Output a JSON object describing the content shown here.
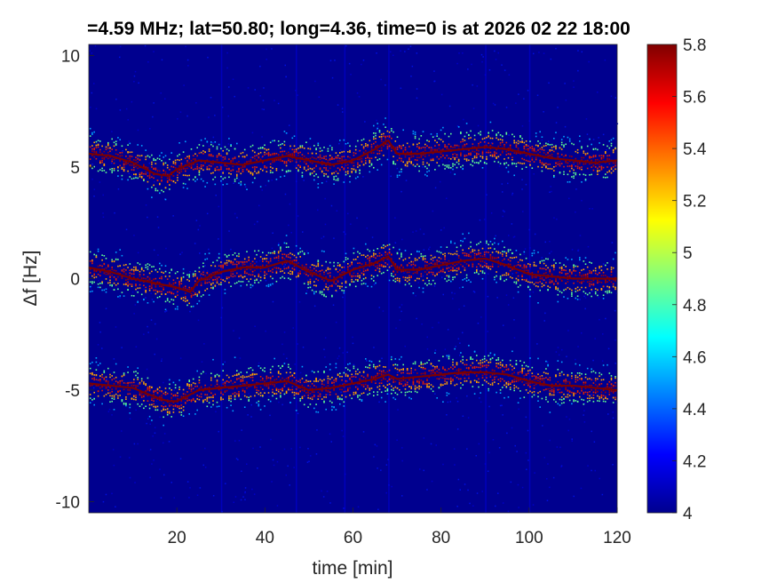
{
  "chart_data": {
    "type": "heatmap",
    "title": "=4.59 MHz;  lat=50.80; long=4.36, time=0 is at 2026 02 22 18:00",
    "xlabel": "time [min]",
    "ylabel": "Δf [Hz]",
    "xlim": [
      0,
      120
    ],
    "ylim": [
      -10.5,
      10.5
    ],
    "x_ticks": [
      20,
      40,
      60,
      80,
      100,
      120
    ],
    "x_tick_labels": [
      "20",
      "40",
      "60",
      "80",
      "100",
      "120"
    ],
    "y_ticks": [
      10,
      5,
      0,
      -5,
      -10
    ],
    "y_tick_labels": [
      "10",
      "5",
      "0",
      "-5",
      "-10"
    ],
    "colorbar": {
      "min": 4,
      "max": 5.8,
      "ticks": [
        5.8,
        5.6,
        5.4,
        5.2,
        5,
        4.8,
        4.6,
        4.4,
        4.2,
        4
      ],
      "tick_labels": [
        "5.8",
        "5.6",
        "5.4",
        "5.2",
        "5",
        "4.8",
        "4.6",
        "4.4",
        "4.2",
        "4"
      ],
      "colormap": "jet"
    },
    "background_value": 4.05,
    "series": [
      {
        "x": [
          0,
          5,
          10,
          15,
          18,
          20,
          25,
          30,
          35,
          40,
          45,
          50,
          55,
          60,
          65,
          68,
          70,
          75,
          80,
          85,
          90,
          95,
          100,
          105,
          110,
          115,
          120
        ],
        "y": [
          5.6,
          5.5,
          5.2,
          4.7,
          4.6,
          4.9,
          5.3,
          5.2,
          5.1,
          5.3,
          5.5,
          5.3,
          5.1,
          5.3,
          5.8,
          6.2,
          5.6,
          5.6,
          5.7,
          5.8,
          5.9,
          5.8,
          5.6,
          5.4,
          5.3,
          5.2,
          5.3
        ]
      },
      {
        "x": [
          0,
          5,
          10,
          15,
          20,
          23,
          25,
          30,
          35,
          40,
          45,
          50,
          55,
          60,
          65,
          68,
          70,
          75,
          80,
          85,
          90,
          95,
          100,
          105,
          110,
          115,
          120
        ],
        "y": [
          0.5,
          0.3,
          0.0,
          -0.2,
          -0.4,
          -0.6,
          -0.1,
          0.3,
          0.5,
          0.5,
          0.8,
          0.3,
          -0.1,
          0.4,
          0.7,
          1.0,
          0.4,
          0.4,
          0.6,
          0.8,
          0.9,
          0.6,
          0.2,
          0.1,
          0.0,
          0.0,
          0.0
        ]
      },
      {
        "x": [
          0,
          5,
          10,
          15,
          18,
          20,
          25,
          30,
          35,
          40,
          45,
          50,
          55,
          60,
          65,
          68,
          70,
          75,
          80,
          85,
          90,
          95,
          100,
          105,
          110,
          115,
          120
        ],
        "y": [
          -4.7,
          -4.8,
          -4.9,
          -5.3,
          -5.5,
          -5.5,
          -5.0,
          -4.9,
          -4.8,
          -4.7,
          -4.6,
          -5.0,
          -4.9,
          -4.7,
          -4.5,
          -4.3,
          -4.5,
          -4.4,
          -4.3,
          -4.2,
          -4.2,
          -4.3,
          -4.6,
          -4.8,
          -4.8,
          -4.9,
          -5.0
        ]
      }
    ]
  }
}
